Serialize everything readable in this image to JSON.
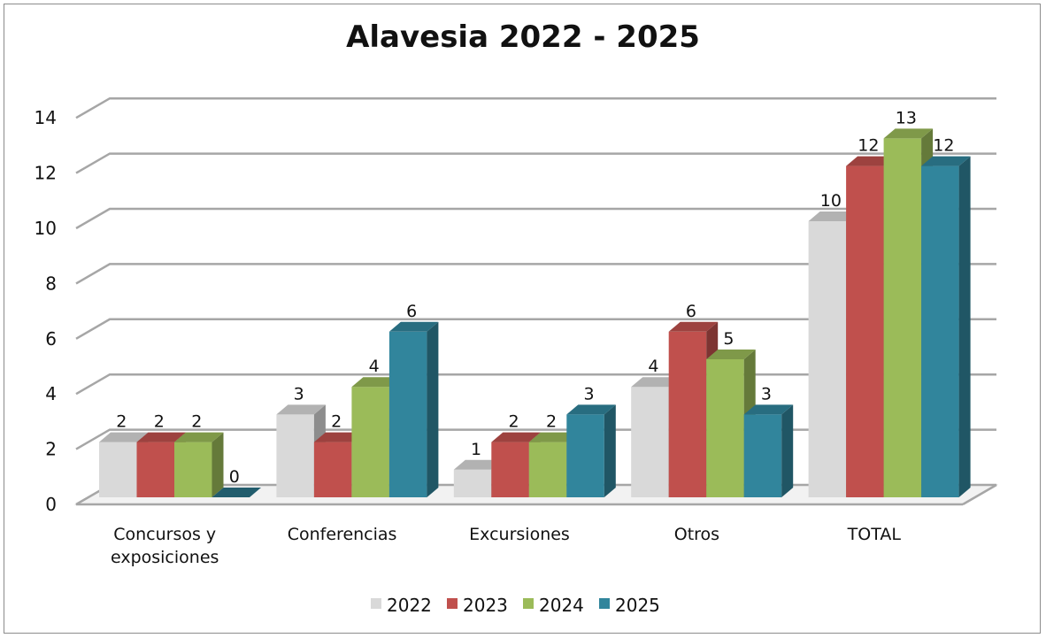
{
  "chart_data": {
    "type": "bar",
    "title": "Alavesia 2022 - 2025",
    "categories": [
      "Concursos y exposiciones",
      "Conferencias",
      "Excursiones",
      "Otros",
      "TOTAL"
    ],
    "category_lines": [
      [
        "Concursos y",
        "exposiciones"
      ],
      [
        "Conferencias"
      ],
      [
        "Excursiones"
      ],
      [
        "Otros"
      ],
      [
        "TOTAL"
      ]
    ],
    "series": [
      {
        "name": "2022",
        "values": [
          2,
          3,
          1,
          4,
          10
        ],
        "color": "#d9d9d9"
      },
      {
        "name": "2023",
        "values": [
          2,
          2,
          2,
          6,
          12
        ],
        "color": "#c0504d"
      },
      {
        "name": "2024",
        "values": [
          2,
          4,
          2,
          5,
          13
        ],
        "color": "#9bbb59"
      },
      {
        "name": "2025",
        "values": [
          0,
          6,
          3,
          3,
          12
        ],
        "color": "#31859c"
      }
    ],
    "y_ticks": [
      "0",
      "2",
      "4",
      "6",
      "8",
      "10",
      "12",
      "14"
    ],
    "ylim": [
      0,
      14
    ],
    "grid": true,
    "legend": "bottom"
  }
}
